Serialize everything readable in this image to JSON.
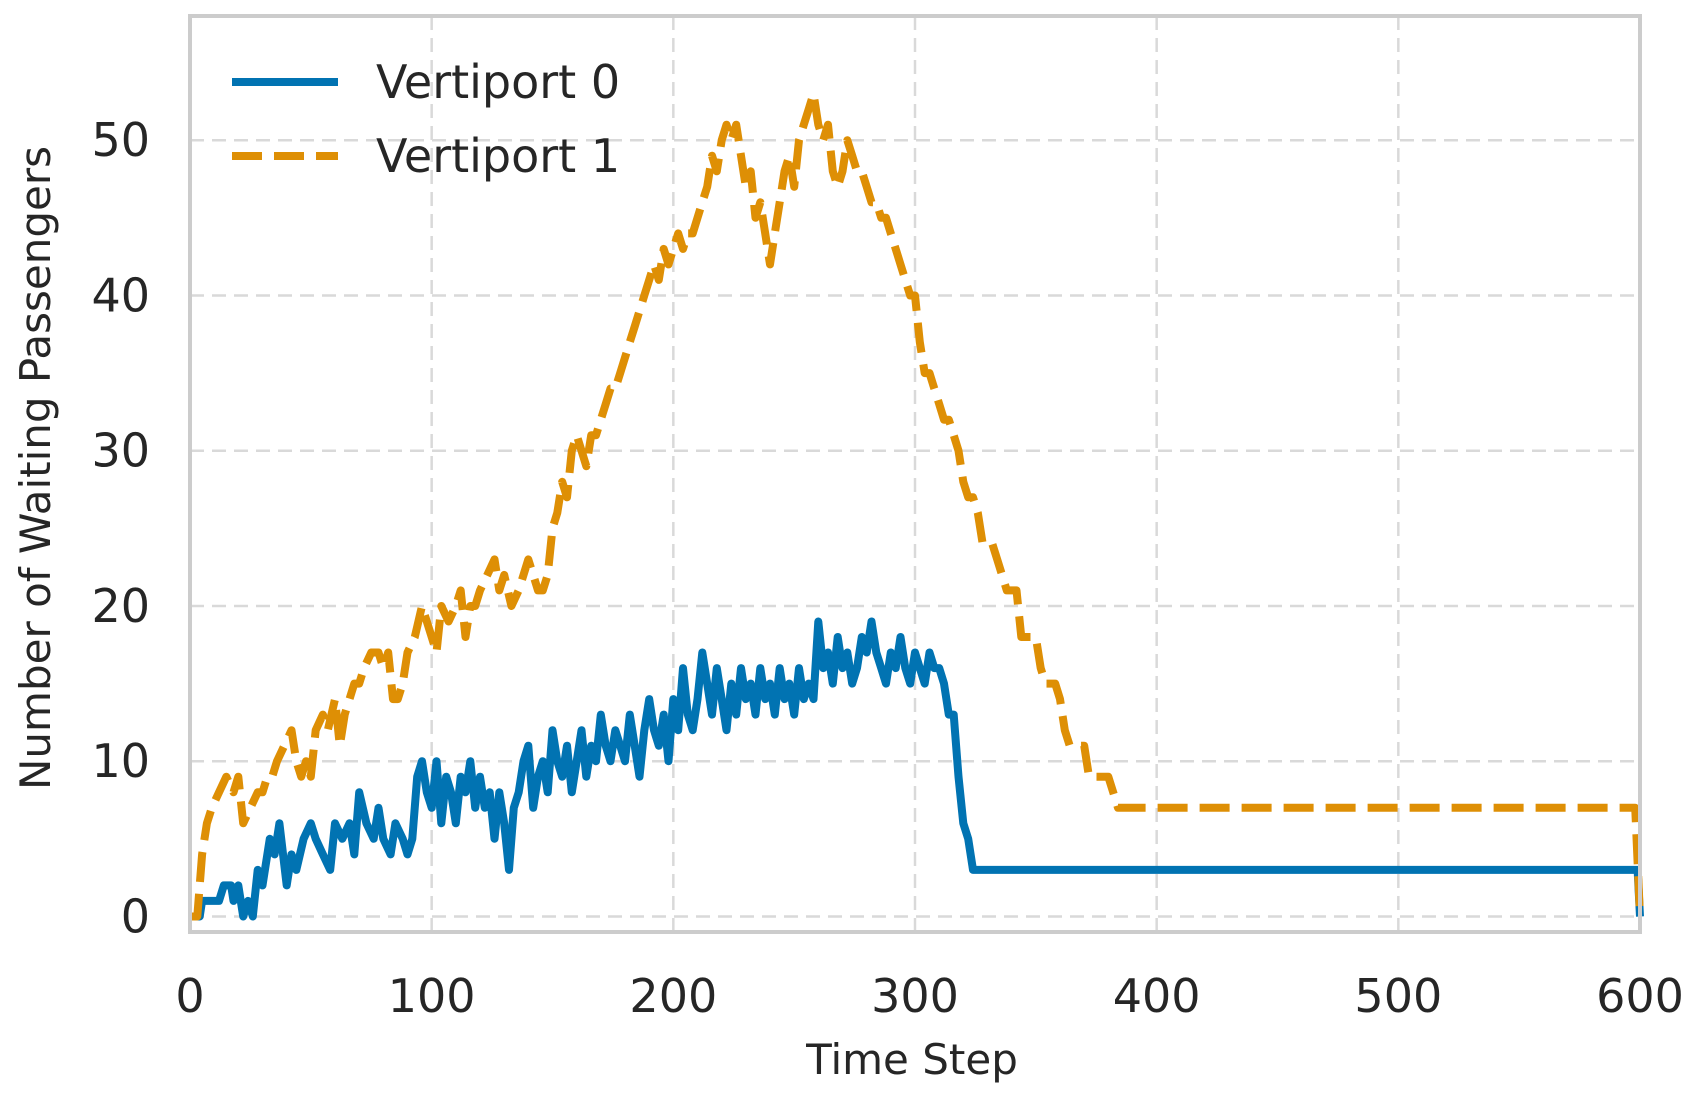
{
  "chart_data": {
    "type": "line",
    "xlabel": "Time Step",
    "ylabel": "Number of Waiting Passengers",
    "xlim": [
      0,
      600
    ],
    "ylim": [
      -1,
      58
    ],
    "xticks": [
      0,
      100,
      200,
      300,
      400,
      500,
      600
    ],
    "yticks": [
      0,
      10,
      20,
      30,
      40,
      50
    ],
    "grid": true,
    "legend_position": "top-left",
    "series": [
      {
        "name": "Vertiport 0",
        "color": "#0173b2",
        "line_style": "solid",
        "points": [
          [
            0,
            0
          ],
          [
            4,
            0
          ],
          [
            5,
            1
          ],
          [
            12,
            1
          ],
          [
            14,
            2
          ],
          [
            17,
            2
          ],
          [
            18,
            1
          ],
          [
            20,
            2
          ],
          [
            22,
            0
          ],
          [
            24,
            1
          ],
          [
            26,
            0
          ],
          [
            28,
            3
          ],
          [
            30,
            2
          ],
          [
            33,
            5
          ],
          [
            35,
            4
          ],
          [
            37,
            6
          ],
          [
            40,
            2
          ],
          [
            42,
            4
          ],
          [
            44,
            3
          ],
          [
            47,
            5
          ],
          [
            50,
            6
          ],
          [
            52,
            5
          ],
          [
            55,
            4
          ],
          [
            58,
            3
          ],
          [
            60,
            6
          ],
          [
            63,
            5
          ],
          [
            66,
            6
          ],
          [
            68,
            4
          ],
          [
            70,
            8
          ],
          [
            73,
            6
          ],
          [
            76,
            5
          ],
          [
            78,
            7
          ],
          [
            80,
            5
          ],
          [
            83,
            4
          ],
          [
            85,
            6
          ],
          [
            88,
            5
          ],
          [
            90,
            4
          ],
          [
            92,
            5
          ],
          [
            94,
            9
          ],
          [
            96,
            10
          ],
          [
            98,
            8
          ],
          [
            100,
            7
          ],
          [
            102,
            10
          ],
          [
            104,
            6
          ],
          [
            106,
            9
          ],
          [
            108,
            8
          ],
          [
            110,
            6
          ],
          [
            112,
            9
          ],
          [
            114,
            8
          ],
          [
            116,
            10
          ],
          [
            118,
            7
          ],
          [
            120,
            9
          ],
          [
            122,
            7
          ],
          [
            124,
            8
          ],
          [
            126,
            5
          ],
          [
            128,
            8
          ],
          [
            130,
            6
          ],
          [
            132,
            3
          ],
          [
            134,
            7
          ],
          [
            136,
            8
          ],
          [
            138,
            10
          ],
          [
            140,
            11
          ],
          [
            142,
            7
          ],
          [
            144,
            9
          ],
          [
            146,
            10
          ],
          [
            148,
            8
          ],
          [
            150,
            12
          ],
          [
            152,
            10
          ],
          [
            154,
            9
          ],
          [
            156,
            11
          ],
          [
            158,
            8
          ],
          [
            160,
            10
          ],
          [
            162,
            12
          ],
          [
            164,
            9
          ],
          [
            166,
            11
          ],
          [
            168,
            10
          ],
          [
            170,
            13
          ],
          [
            172,
            11
          ],
          [
            174,
            10
          ],
          [
            176,
            12
          ],
          [
            178,
            11
          ],
          [
            180,
            10
          ],
          [
            182,
            13
          ],
          [
            184,
            11
          ],
          [
            186,
            9
          ],
          [
            188,
            12
          ],
          [
            190,
            14
          ],
          [
            192,
            12
          ],
          [
            194,
            11
          ],
          [
            196,
            13
          ],
          [
            198,
            10
          ],
          [
            200,
            14
          ],
          [
            202,
            12
          ],
          [
            204,
            16
          ],
          [
            206,
            13
          ],
          [
            208,
            12
          ],
          [
            210,
            14
          ],
          [
            212,
            17
          ],
          [
            214,
            15
          ],
          [
            216,
            13
          ],
          [
            218,
            16
          ],
          [
            220,
            14
          ],
          [
            222,
            12
          ],
          [
            224,
            15
          ],
          [
            226,
            13
          ],
          [
            228,
            16
          ],
          [
            230,
            14
          ],
          [
            232,
            15
          ],
          [
            234,
            13
          ],
          [
            236,
            16
          ],
          [
            238,
            14
          ],
          [
            240,
            15
          ],
          [
            242,
            13
          ],
          [
            244,
            16
          ],
          [
            246,
            14
          ],
          [
            248,
            15
          ],
          [
            250,
            13
          ],
          [
            252,
            16
          ],
          [
            254,
            14
          ],
          [
            256,
            15
          ],
          [
            258,
            14
          ],
          [
            260,
            19
          ],
          [
            262,
            16
          ],
          [
            264,
            17
          ],
          [
            266,
            15
          ],
          [
            268,
            18
          ],
          [
            270,
            16
          ],
          [
            272,
            17
          ],
          [
            274,
            15
          ],
          [
            276,
            16
          ],
          [
            278,
            18
          ],
          [
            280,
            17
          ],
          [
            282,
            19
          ],
          [
            284,
            17
          ],
          [
            286,
            16
          ],
          [
            288,
            15
          ],
          [
            290,
            17
          ],
          [
            292,
            16
          ],
          [
            294,
            18
          ],
          [
            296,
            16
          ],
          [
            298,
            15
          ],
          [
            300,
            17
          ],
          [
            302,
            16
          ],
          [
            304,
            15
          ],
          [
            306,
            17
          ],
          [
            308,
            16
          ],
          [
            310,
            16
          ],
          [
            312,
            15
          ],
          [
            314,
            13
          ],
          [
            316,
            13
          ],
          [
            318,
            9
          ],
          [
            320,
            6
          ],
          [
            322,
            5
          ],
          [
            324,
            3
          ],
          [
            596,
            3
          ],
          [
            599,
            3
          ],
          [
            600,
            0
          ]
        ]
      },
      {
        "name": "Vertiport 1",
        "color": "#de8f05",
        "line_style": "dashed",
        "points": [
          [
            0,
            0
          ],
          [
            3,
            0
          ],
          [
            5,
            4
          ],
          [
            7,
            6
          ],
          [
            9,
            7
          ],
          [
            12,
            8
          ],
          [
            15,
            9
          ],
          [
            18,
            8
          ],
          [
            20,
            9
          ],
          [
            22,
            6
          ],
          [
            25,
            7
          ],
          [
            28,
            8
          ],
          [
            30,
            8
          ],
          [
            32,
            9
          ],
          [
            34,
            9
          ],
          [
            36,
            10
          ],
          [
            39,
            11
          ],
          [
            42,
            12
          ],
          [
            44,
            10
          ],
          [
            46,
            9
          ],
          [
            48,
            10
          ],
          [
            50,
            9
          ],
          [
            52,
            12
          ],
          [
            55,
            13
          ],
          [
            57,
            12
          ],
          [
            60,
            14
          ],
          [
            62,
            11
          ],
          [
            64,
            13
          ],
          [
            66,
            14
          ],
          [
            68,
            15
          ],
          [
            70,
            15
          ],
          [
            72,
            16
          ],
          [
            75,
            17
          ],
          [
            78,
            17
          ],
          [
            80,
            16
          ],
          [
            82,
            17
          ],
          [
            84,
            14
          ],
          [
            86,
            14
          ],
          [
            88,
            15
          ],
          [
            90,
            17
          ],
          [
            93,
            18
          ],
          [
            96,
            20
          ],
          [
            98,
            19
          ],
          [
            100,
            18
          ],
          [
            102,
            17
          ],
          [
            104,
            20
          ],
          [
            107,
            19
          ],
          [
            110,
            20
          ],
          [
            112,
            21
          ],
          [
            114,
            18
          ],
          [
            116,
            20
          ],
          [
            118,
            20
          ],
          [
            120,
            21
          ],
          [
            123,
            22
          ],
          [
            126,
            23
          ],
          [
            128,
            21
          ],
          [
            130,
            22
          ],
          [
            133,
            20
          ],
          [
            136,
            21
          ],
          [
            138,
            22
          ],
          [
            140,
            23
          ],
          [
            142,
            22
          ],
          [
            144,
            21
          ],
          [
            146,
            21
          ],
          [
            148,
            22
          ],
          [
            150,
            25
          ],
          [
            152,
            26
          ],
          [
            154,
            28
          ],
          [
            156,
            27
          ],
          [
            158,
            30
          ],
          [
            160,
            31
          ],
          [
            162,
            30
          ],
          [
            164,
            29
          ],
          [
            166,
            31
          ],
          [
            168,
            31
          ],
          [
            170,
            32
          ],
          [
            172,
            33
          ],
          [
            174,
            34
          ],
          [
            176,
            34
          ],
          [
            178,
            35
          ],
          [
            180,
            36
          ],
          [
            182,
            37
          ],
          [
            184,
            38
          ],
          [
            186,
            39
          ],
          [
            188,
            40
          ],
          [
            190,
            41
          ],
          [
            192,
            42
          ],
          [
            194,
            41
          ],
          [
            196,
            43
          ],
          [
            198,
            42
          ],
          [
            200,
            43
          ],
          [
            202,
            44
          ],
          [
            204,
            43
          ],
          [
            206,
            44
          ],
          [
            208,
            44
          ],
          [
            210,
            45
          ],
          [
            212,
            46
          ],
          [
            214,
            47
          ],
          [
            216,
            49
          ],
          [
            218,
            48
          ],
          [
            220,
            50
          ],
          [
            222,
            51
          ],
          [
            224,
            50
          ],
          [
            226,
            51
          ],
          [
            228,
            49
          ],
          [
            230,
            47
          ],
          [
            232,
            48
          ],
          [
            234,
            45
          ],
          [
            236,
            46
          ],
          [
            238,
            44
          ],
          [
            240,
            42
          ],
          [
            242,
            44
          ],
          [
            244,
            46
          ],
          [
            246,
            48
          ],
          [
            248,
            49
          ],
          [
            250,
            47
          ],
          [
            252,
            50
          ],
          [
            254,
            51
          ],
          [
            256,
            52
          ],
          [
            258,
            53
          ],
          [
            260,
            51
          ],
          [
            262,
            50
          ],
          [
            264,
            51
          ],
          [
            266,
            48
          ],
          [
            268,
            47
          ],
          [
            270,
            48
          ],
          [
            272,
            50
          ],
          [
            274,
            49
          ],
          [
            276,
            48
          ],
          [
            278,
            48
          ],
          [
            280,
            47
          ],
          [
            282,
            46
          ],
          [
            284,
            46
          ],
          [
            286,
            45
          ],
          [
            288,
            45
          ],
          [
            290,
            44
          ],
          [
            292,
            43
          ],
          [
            294,
            42
          ],
          [
            296,
            41
          ],
          [
            298,
            40
          ],
          [
            300,
            40
          ],
          [
            302,
            37
          ],
          [
            304,
            35
          ],
          [
            306,
            35
          ],
          [
            308,
            34
          ],
          [
            310,
            33
          ],
          [
            312,
            32
          ],
          [
            314,
            32
          ],
          [
            316,
            31
          ],
          [
            318,
            30
          ],
          [
            320,
            28
          ],
          [
            322,
            27
          ],
          [
            324,
            27
          ],
          [
            326,
            26
          ],
          [
            328,
            24
          ],
          [
            332,
            24
          ],
          [
            334,
            23
          ],
          [
            336,
            22
          ],
          [
            338,
            21
          ],
          [
            342,
            21
          ],
          [
            344,
            18
          ],
          [
            350,
            18
          ],
          [
            352,
            16
          ],
          [
            354,
            15
          ],
          [
            358,
            15
          ],
          [
            360,
            14
          ],
          [
            362,
            12
          ],
          [
            364,
            11
          ],
          [
            370,
            11
          ],
          [
            372,
            9
          ],
          [
            380,
            9
          ],
          [
            382,
            8
          ],
          [
            384,
            7
          ],
          [
            598,
            7
          ],
          [
            600,
            0
          ]
        ]
      }
    ]
  }
}
